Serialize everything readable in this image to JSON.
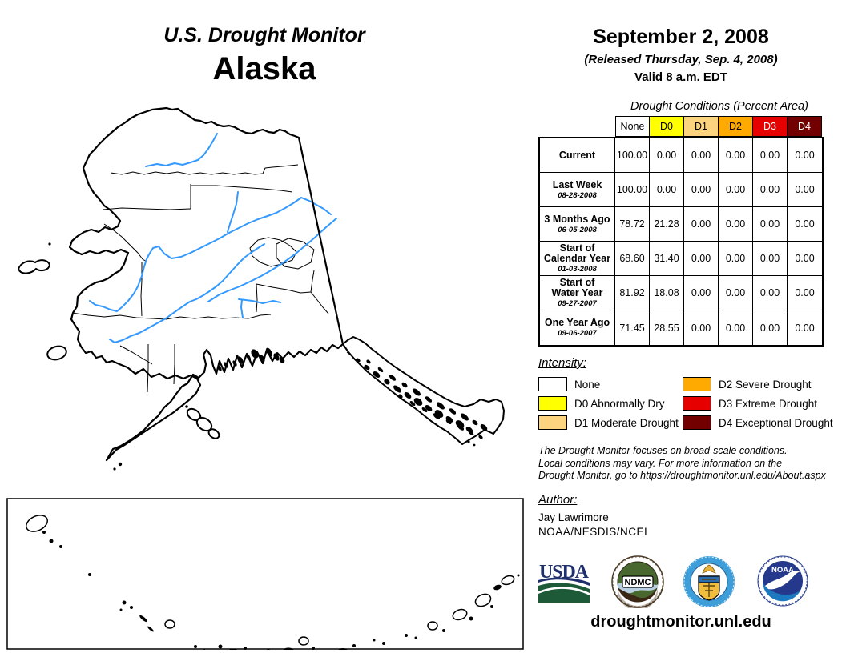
{
  "title": {
    "line1": "U.S. Drought Monitor",
    "line2": "Alaska"
  },
  "date_block": {
    "date": "September 2, 2008",
    "released": "(Released Thursday, Sep. 4, 2008)",
    "valid": "Valid 8 a.m. EDT"
  },
  "table": {
    "caption": "Drought Conditions (Percent Area)",
    "columns": [
      {
        "label": "None",
        "bg": "#FFFFFF",
        "fg": "#000000"
      },
      {
        "label": "D0",
        "bg": "#FFFF00",
        "fg": "#000000"
      },
      {
        "label": "D1",
        "bg": "#FCD37F",
        "fg": "#000000"
      },
      {
        "label": "D2",
        "bg": "#FFAA00",
        "fg": "#000000"
      },
      {
        "label": "D3",
        "bg": "#E60000",
        "fg": "#FFFFFF"
      },
      {
        "label": "D4",
        "bg": "#730000",
        "fg": "#FFFFFF"
      }
    ],
    "rows": [
      {
        "label_lines": [
          "Current"
        ],
        "date": "",
        "values": [
          "100.00",
          "0.00",
          "0.00",
          "0.00",
          "0.00",
          "0.00"
        ]
      },
      {
        "label_lines": [
          "Last Week"
        ],
        "date": "08-28-2008",
        "values": [
          "100.00",
          "0.00",
          "0.00",
          "0.00",
          "0.00",
          "0.00"
        ]
      },
      {
        "label_lines": [
          "3 Months Ago"
        ],
        "date": "06-05-2008",
        "values": [
          "78.72",
          "21.28",
          "0.00",
          "0.00",
          "0.00",
          "0.00"
        ]
      },
      {
        "label_lines": [
          "Start of",
          "Calendar Year"
        ],
        "date": "01-03-2008",
        "values": [
          "68.60",
          "31.40",
          "0.00",
          "0.00",
          "0.00",
          "0.00"
        ]
      },
      {
        "label_lines": [
          "Start of",
          "Water Year"
        ],
        "date": "09-27-2007",
        "values": [
          "81.92",
          "18.08",
          "0.00",
          "0.00",
          "0.00",
          "0.00"
        ]
      },
      {
        "label_lines": [
          "One Year Ago"
        ],
        "date": "09-06-2007",
        "values": [
          "71.45",
          "28.55",
          "0.00",
          "0.00",
          "0.00",
          "0.00"
        ]
      }
    ]
  },
  "legend": {
    "heading": "Intensity:",
    "items": [
      {
        "label": "None",
        "color": "#FFFFFF"
      },
      {
        "label": "D0 Abnormally Dry",
        "color": "#FFFF00"
      },
      {
        "label": "D1 Moderate Drought",
        "color": "#FCD37F"
      },
      {
        "label": "D2 Severe Drought",
        "color": "#FFAA00"
      },
      {
        "label": "D3 Extreme Drought",
        "color": "#E60000"
      },
      {
        "label": "D4 Exceptional Drought",
        "color": "#730000"
      }
    ]
  },
  "disclaimer": {
    "line1": "The Drought Monitor focuses on broad-scale conditions.",
    "line2": "Local conditions may vary. For more information on the",
    "line3": "Drought Monitor, go to https://droughtmonitor.unl.edu/About.aspx"
  },
  "author": {
    "heading": "Author:",
    "name": "Jay Lawrimore",
    "org": "NOAA/NESDIS/NCEI"
  },
  "footer": {
    "url": "droughtmonitor.unl.edu"
  },
  "logos": {
    "usda": "USDA",
    "ndmc": "NDMC",
    "noaa": "NOAA"
  },
  "map": {
    "river_color": "#3399FF",
    "outline_color": "#000000"
  }
}
